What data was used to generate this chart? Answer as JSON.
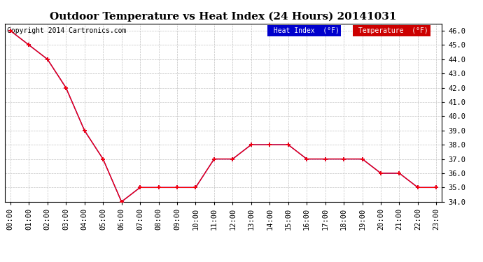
{
  "title": "Outdoor Temperature vs Heat Index (24 Hours) 20141031",
  "copyright_text": "Copyright 2014 Cartronics.com",
  "x_labels": [
    "00:00",
    "01:00",
    "02:00",
    "03:00",
    "04:00",
    "05:00",
    "06:00",
    "07:00",
    "08:00",
    "09:00",
    "10:00",
    "11:00",
    "12:00",
    "13:00",
    "14:00",
    "15:00",
    "16:00",
    "17:00",
    "18:00",
    "19:00",
    "20:00",
    "21:00",
    "22:00",
    "23:00"
  ],
  "temperature": [
    46.0,
    45.0,
    44.0,
    42.0,
    39.0,
    37.0,
    34.0,
    35.0,
    35.0,
    35.0,
    35.0,
    37.0,
    37.0,
    38.0,
    38.0,
    38.0,
    37.0,
    37.0,
    37.0,
    37.0,
    36.0,
    36.0,
    35.0,
    35.0
  ],
  "heat_index": [
    46.0,
    45.0,
    44.0,
    42.0,
    39.0,
    37.0,
    34.0,
    35.0,
    35.0,
    35.0,
    35.0,
    37.0,
    37.0,
    38.0,
    38.0,
    38.0,
    37.0,
    37.0,
    37.0,
    37.0,
    36.0,
    36.0,
    35.0,
    35.0
  ],
  "ylim": [
    34.0,
    46.5
  ],
  "yticks": [
    34.0,
    35.0,
    36.0,
    37.0,
    38.0,
    39.0,
    40.0,
    41.0,
    42.0,
    43.0,
    44.0,
    45.0,
    46.0
  ],
  "temp_color": "#ff0000",
  "heat_index_color": "#0000ff",
  "bg_color": "#ffffff",
  "grid_color": "#c0c0c0",
  "legend_heat_bg": "#0000cc",
  "legend_temp_bg": "#cc0000",
  "legend_text_color": "#ffffff",
  "title_fontsize": 11,
  "copyright_fontsize": 7,
  "axis_label_fontsize": 7.5
}
